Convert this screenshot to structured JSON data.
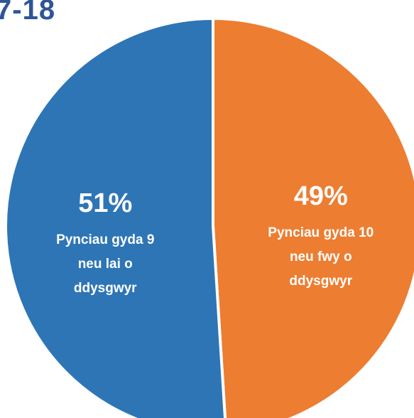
{
  "header": {
    "title_fragment": "7-18"
  },
  "chart_data": {
    "type": "pie",
    "title": "",
    "start_angle_deg": 0,
    "direction": "clockwise",
    "slices": [
      {
        "label": "Pynciau gyda 10 neu fwy o ddysgwyr",
        "value": 49,
        "display": "49%",
        "label_lines": [
          "Pynciau gyda 10",
          "neu fwy o",
          "ddysgwyr"
        ],
        "color": "#ed7d31"
      },
      {
        "label": "Pynciau gyda 9 neu lai o ddysgwyr",
        "value": 51,
        "display": "51%",
        "label_lines": [
          "Pynciau gyda 9",
          "neu lai o",
          "ddysgwyr"
        ],
        "color": "#2e75b6"
      }
    ],
    "border_color": "#ffffff"
  }
}
